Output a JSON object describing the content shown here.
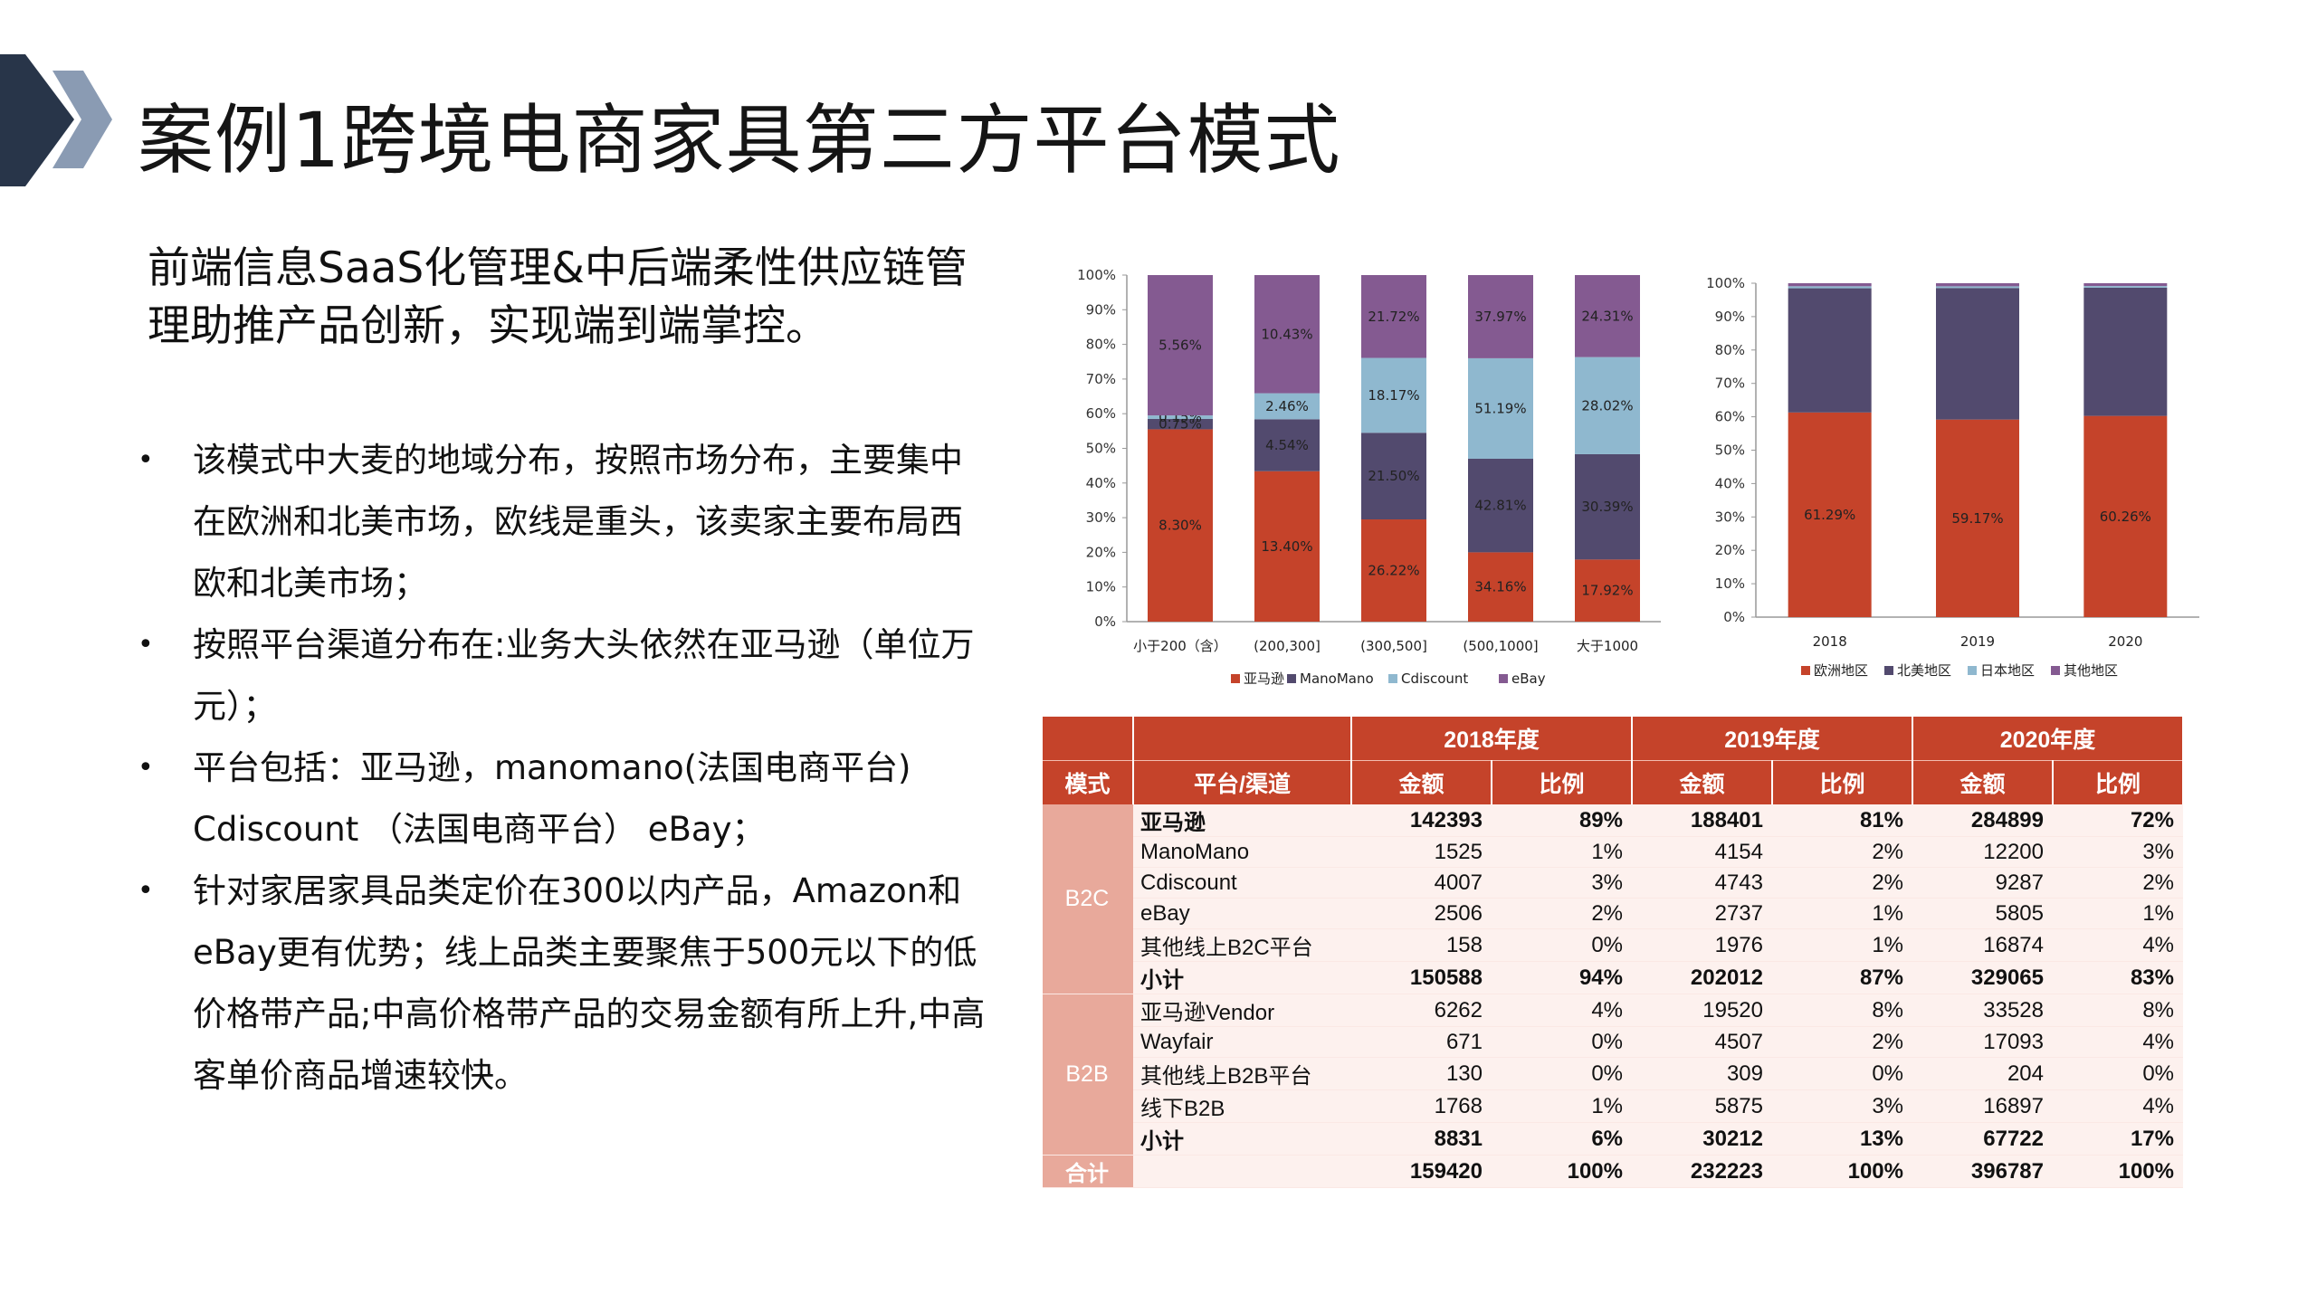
{
  "header": {
    "title": "案例1跨境电商家具第三方平台模式",
    "subtitle": "前端信息SaaS化管理&中后端柔性供应链管理助推产品创新，实现端到端掌控。"
  },
  "bullets": [
    "该模式中大麦的地域分布，按照市场分布，主要集中在欧洲和北美市场，欧线是重头，该卖家主要布局西欧和北美市场；",
    "按照平台渠道分布在:业务大头依然在亚马逊（单位万元）；",
    "平台包括：亚马逊，manomano(法国电商平台)  Cdiscount （法国电商平台）  eBay；",
    "针对家居家具品类定价在300以内产品，Amazon和eBay更有优势；线上品类主要聚焦于500元以下的低价格带产品;中高价格带产品的交易金额有所上升,中高客单价商品增速较快。"
  ],
  "chart_data": [
    {
      "type": "bar",
      "stacked": true,
      "categories": [
        "小于200（含）",
        "(200,300]",
        "(300,500]",
        "(500,1000]",
        "大于1000"
      ],
      "series": [
        {
          "name": "亚马逊",
          "color": "#c5432a",
          "values": [
            55.5,
            43.4,
            29.5,
            20.0,
            17.92
          ],
          "labels": [
            "8.30%",
            "13.40%",
            "26.22%",
            "34.16%",
            "17.92%"
          ]
        },
        {
          "name": "ManoMano",
          "color": "#524a6e",
          "values": [
            3.0,
            15.0,
            25.0,
            27.0,
            30.39
          ],
          "labels": [
            "0.75%",
            "4.54%",
            "21.50%",
            "42.81%",
            "30.39%"
          ]
        },
        {
          "name": "Cdiscount",
          "color": "#8fb8cf",
          "values": [
            1.0,
            7.5,
            21.6,
            29.0,
            28.02
          ],
          "labels": [
            "0.15%",
            "2.46%",
            "18.17%",
            "51.19%",
            "28.02%"
          ]
        },
        {
          "name": "eBay",
          "color": "#845a91",
          "values": [
            40.5,
            34.1,
            23.9,
            24.0,
            23.67
          ],
          "labels": [
            "5.56%",
            "10.43%",
            "21.72%",
            "37.97%",
            "24.31%"
          ]
        }
      ],
      "yticks": [
        "0%",
        "10%",
        "20%",
        "30%",
        "40%",
        "50%",
        "60%",
        "70%",
        "80%",
        "90%",
        "100%"
      ],
      "ylim": [
        0,
        100
      ],
      "legend": "bottom"
    },
    {
      "type": "bar",
      "stacked": true,
      "categories": [
        "2018",
        "2019",
        "2020"
      ],
      "series": [
        {
          "name": "欧洲地区",
          "color": "#c5432a",
          "values": [
            61.29,
            59.17,
            60.26
          ],
          "labels": [
            "61.29%",
            "59.17%",
            "60.26%"
          ]
        },
        {
          "name": "北美地区",
          "color": "#524a6e",
          "values": [
            37.2,
            39.4,
            38.4
          ],
          "labels": [
            "",
            "",
            ""
          ]
        },
        {
          "name": "日本地区",
          "color": "#8fb8cf",
          "values": [
            0.6,
            0.5,
            0.5
          ],
          "labels": [
            "",
            "",
            ""
          ]
        },
        {
          "name": "其他地区",
          "color": "#845a91",
          "values": [
            0.91,
            0.93,
            0.84
          ],
          "labels": [
            "",
            "",
            ""
          ]
        }
      ],
      "yticks": [
        "0%",
        "10%",
        "20%",
        "30%",
        "40%",
        "50%",
        "60%",
        "70%",
        "80%",
        "90%",
        "100%"
      ],
      "ylim": [
        0,
        100
      ],
      "legend": "bottom"
    }
  ],
  "table": {
    "year_headers": [
      "2018年度",
      "2019年度",
      "2020年度"
    ],
    "col_mode": "模式",
    "col_channel": "平台/渠道",
    "col_amount": "金额",
    "col_ratio": "比例",
    "groups": [
      {
        "mode": "B2C",
        "rows": [
          {
            "channel": "亚马逊",
            "bold": true,
            "v": [
              "142393",
              "89%",
              "188401",
              "81%",
              "284899",
              "72%"
            ]
          },
          {
            "channel": "ManoMano",
            "v": [
              "1525",
              "1%",
              "4154",
              "2%",
              "12200",
              "3%"
            ]
          },
          {
            "channel": "Cdiscount",
            "v": [
              "4007",
              "3%",
              "4743",
              "2%",
              "9287",
              "2%"
            ]
          },
          {
            "channel": "eBay",
            "v": [
              "2506",
              "2%",
              "2737",
              "1%",
              "5805",
              "1%"
            ]
          },
          {
            "channel": "其他线上B2C平台",
            "v": [
              "158",
              "0%",
              "1976",
              "1%",
              "16874",
              "4%"
            ]
          },
          {
            "channel": "小计",
            "bold": true,
            "v": [
              "150588",
              "94%",
              "202012",
              "87%",
              "329065",
              "83%"
            ]
          }
        ]
      },
      {
        "mode": "B2B",
        "rows": [
          {
            "channel": "亚马逊Vendor",
            "v": [
              "6262",
              "4%",
              "19520",
              "8%",
              "33528",
              "8%"
            ]
          },
          {
            "channel": "Wayfair",
            "v": [
              "671",
              "0%",
              "4507",
              "2%",
              "17093",
              "4%"
            ]
          },
          {
            "channel": "其他线上B2B平台",
            "v": [
              "130",
              "0%",
              "309",
              "0%",
              "204",
              "0%"
            ]
          },
          {
            "channel": "线下B2B",
            "v": [
              "1768",
              "1%",
              "5875",
              "3%",
              "16897",
              "4%"
            ]
          },
          {
            "channel": "小计",
            "bold": true,
            "v": [
              "8831",
              "6%",
              "30212",
              "13%",
              "67722",
              "17%"
            ]
          }
        ]
      }
    ],
    "total": {
      "label": "合计",
      "v": [
        "159420",
        "100%",
        "232223",
        "100%",
        "396787",
        "100%"
      ]
    }
  }
}
